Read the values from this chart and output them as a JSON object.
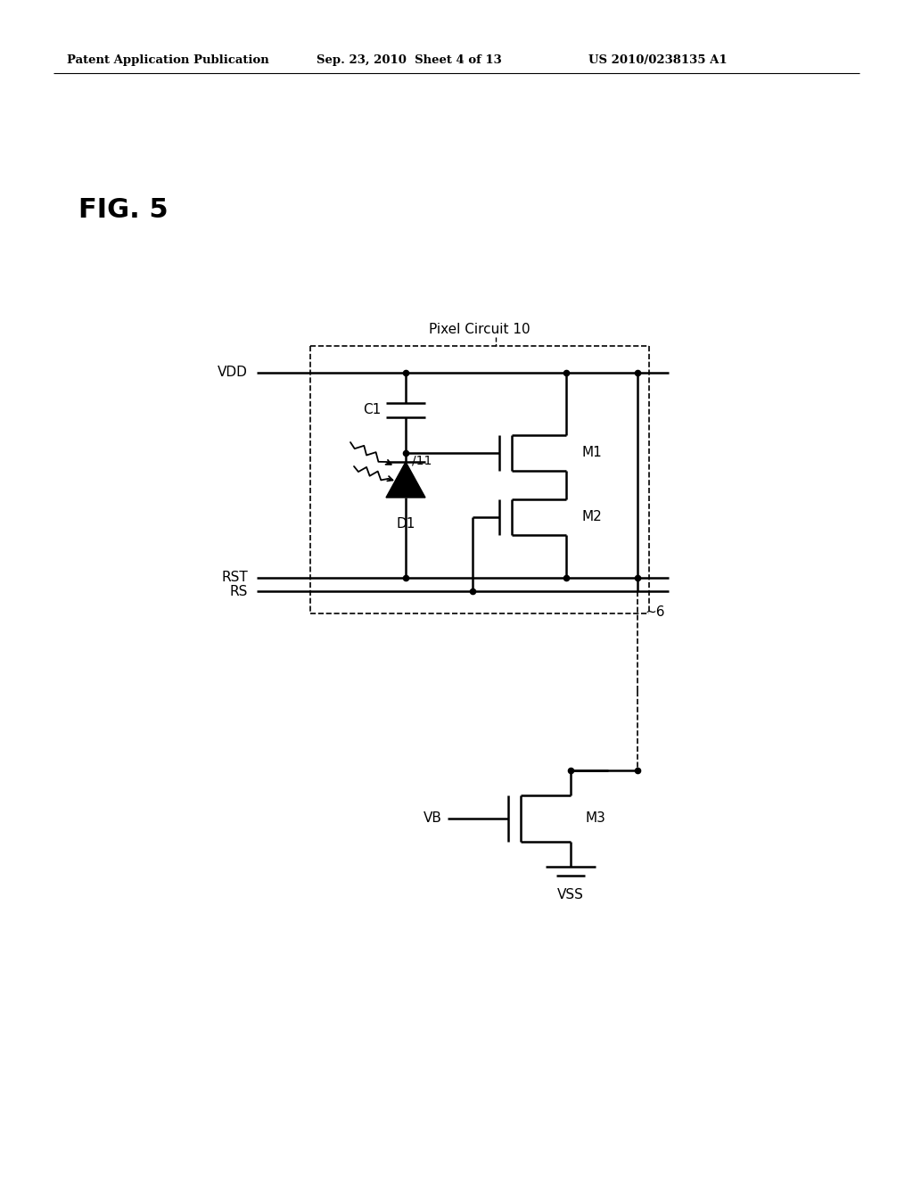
{
  "bg_color": "#ffffff",
  "text_color": "#000000",
  "header_left": "Patent Application Publication",
  "header_mid": "Sep. 23, 2010  Sheet 4 of 13",
  "header_right": "US 2010/0238135 A1",
  "fig_label": "FIG. 5",
  "circuit_label": "Pixel Circuit 10",
  "lw": 1.8,
  "lw_thin": 1.0
}
